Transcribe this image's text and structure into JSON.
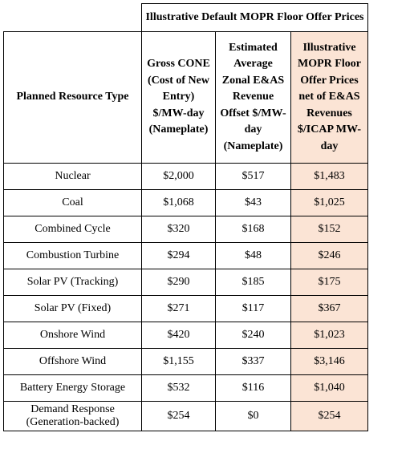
{
  "table": {
    "group_header": "Illustrative Default MOPR Floor Offer Prices",
    "columns": [
      "Planned Resource Type",
      "Gross CONE (Cost of New Entry) $/MW-day (Nameplate)",
      "Estimated Average Zonal E&AS Revenue Offset $/MW-day (Nameplate)",
      "Illustrative MOPR Floor Offer Prices net of E&AS Revenues $/ICAP MW-day"
    ],
    "rows": [
      [
        "Nuclear",
        "$2,000",
        "$517",
        "$1,483"
      ],
      [
        "Coal",
        "$1,068",
        "$43",
        "$1,025"
      ],
      [
        "Combined Cycle",
        "$320",
        "$168",
        "$152"
      ],
      [
        "Combustion Turbine",
        "$294",
        "$48",
        "$246"
      ],
      [
        "Solar PV (Tracking)",
        "$290",
        "$185",
        "$175"
      ],
      [
        "Solar PV (Fixed)",
        "$271",
        "$117",
        "$367"
      ],
      [
        "Onshore Wind",
        "$420",
        "$240",
        "$1,023"
      ],
      [
        "Offshore Wind",
        "$1,155",
        "$337",
        "$3,146"
      ],
      [
        "Battery Energy Storage",
        "$532",
        "$116",
        "$1,040"
      ],
      [
        "Demand Response (Generation-backed)",
        "$254",
        "$0",
        "$254"
      ]
    ],
    "highlight_color": "#fbe4d5"
  }
}
